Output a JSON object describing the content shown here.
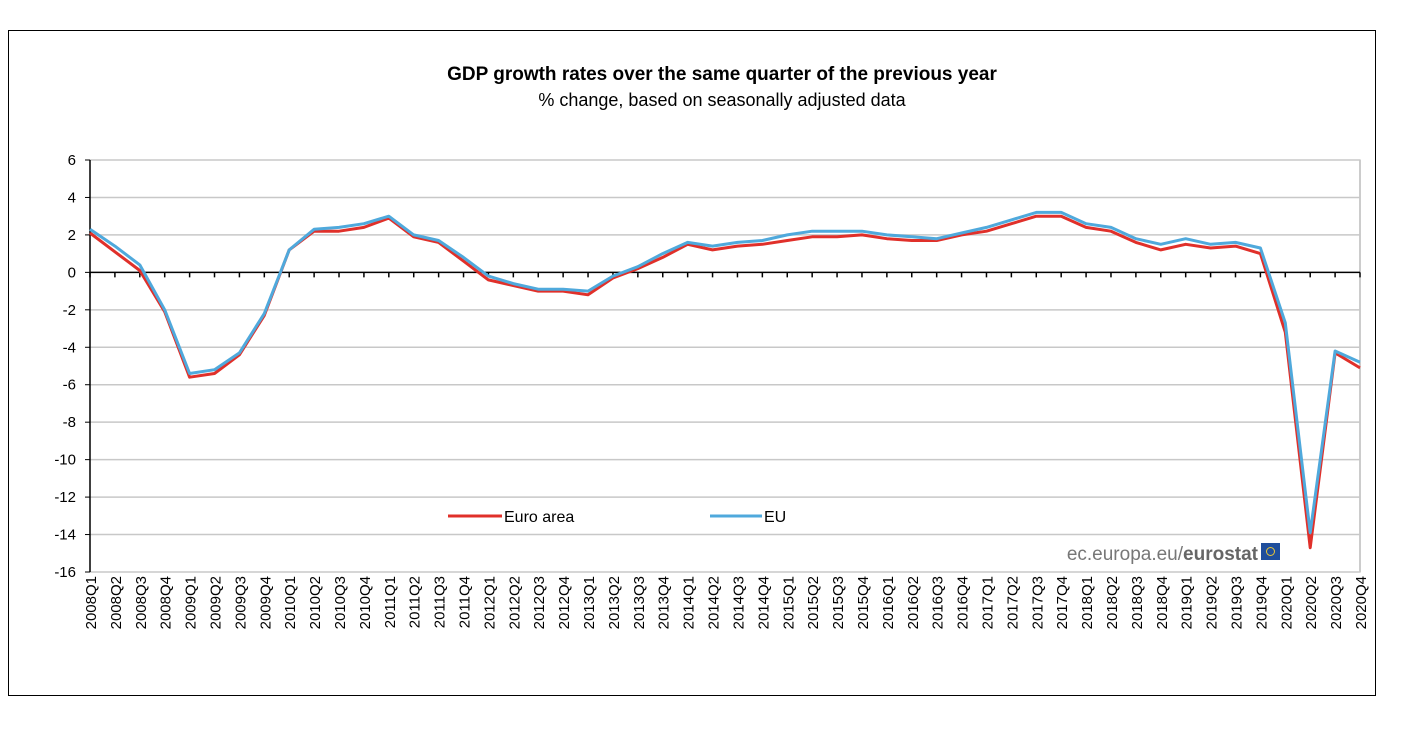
{
  "chart_data": {
    "type": "line",
    "title": "GDP growth rates over the same quarter of the previous year",
    "subtitle": "% change, based on seasonally adjusted data",
    "xlabel": "",
    "ylabel": "",
    "ylim": [
      -16,
      6
    ],
    "yticks": [
      6,
      4,
      2,
      0,
      -2,
      -4,
      -6,
      -8,
      -10,
      -12,
      -14,
      -16
    ],
    "grid": true,
    "legend_placement": "bottom-center-inside",
    "watermark": {
      "prefix": "ec.europa.eu/",
      "brand": "eurostat"
    },
    "categories": [
      "2008Q1",
      "2008Q2",
      "2008Q3",
      "2008Q4",
      "2009Q1",
      "2009Q2",
      "2009Q3",
      "2009Q4",
      "2010Q1",
      "2010Q2",
      "2010Q3",
      "2010Q4",
      "2011Q1",
      "2011Q2",
      "2011Q3",
      "2011Q4",
      "2012Q1",
      "2012Q2",
      "2012Q3",
      "2012Q4",
      "2013Q1",
      "2013Q2",
      "2013Q3",
      "2013Q4",
      "2014Q1",
      "2014Q2",
      "2014Q3",
      "2014Q4",
      "2015Q1",
      "2015Q2",
      "2015Q3",
      "2015Q4",
      "2016Q1",
      "2016Q2",
      "2016Q3",
      "2016Q4",
      "2017Q1",
      "2017Q2",
      "2017Q3",
      "2017Q4",
      "2018Q1",
      "2018Q2",
      "2018Q3",
      "2018Q4",
      "2019Q1",
      "2019Q2",
      "2019Q3",
      "2019Q4",
      "2020Q1",
      "2020Q2",
      "2020Q3",
      "2020Q4"
    ],
    "series": [
      {
        "name": "Euro area",
        "color": "#e0302a",
        "values": [
          2.1,
          1.1,
          0.1,
          -2.1,
          -5.6,
          -5.4,
          -4.4,
          -2.3,
          1.2,
          2.2,
          2.2,
          2.4,
          2.9,
          1.9,
          1.6,
          0.6,
          -0.4,
          -0.7,
          -1.0,
          -1.0,
          -1.2,
          -0.3,
          0.2,
          0.8,
          1.5,
          1.2,
          1.4,
          1.5,
          1.7,
          1.9,
          1.9,
          2.0,
          1.8,
          1.7,
          1.7,
          2.0,
          2.2,
          2.6,
          3.0,
          3.0,
          2.4,
          2.2,
          1.6,
          1.2,
          1.5,
          1.3,
          1.4,
          1.0,
          -3.2,
          -14.7,
          -4.3,
          -5.1
        ]
      },
      {
        "name": "EU",
        "color": "#4fa9dc",
        "values": [
          2.3,
          1.4,
          0.4,
          -2.0,
          -5.4,
          -5.2,
          -4.3,
          -2.2,
          1.2,
          2.3,
          2.4,
          2.6,
          3.0,
          2.0,
          1.7,
          0.8,
          -0.2,
          -0.6,
          -0.9,
          -0.9,
          -1.0,
          -0.2,
          0.3,
          1.0,
          1.6,
          1.4,
          1.6,
          1.7,
          2.0,
          2.2,
          2.2,
          2.2,
          2.0,
          1.9,
          1.8,
          2.1,
          2.4,
          2.8,
          3.2,
          3.2,
          2.6,
          2.4,
          1.8,
          1.5,
          1.8,
          1.5,
          1.6,
          1.3,
          -2.7,
          -13.9,
          -4.2,
          -4.8
        ]
      }
    ]
  }
}
